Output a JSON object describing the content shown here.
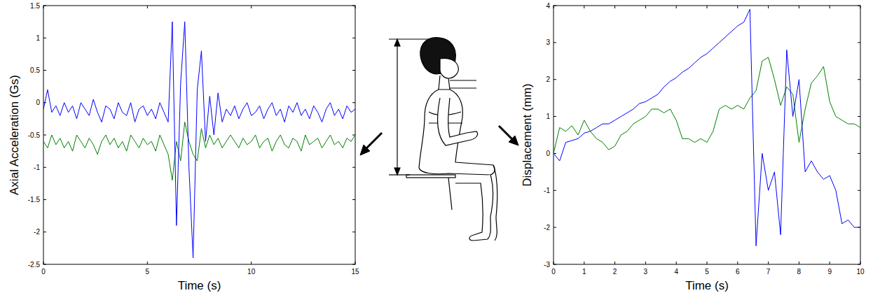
{
  "chart_data": [
    {
      "type": "line",
      "x_label": "Time (s)",
      "y_label": "Axial Acceleration (Gs)",
      "x": [
        0,
        0.2,
        0.4,
        0.6,
        0.8,
        1,
        1.2,
        1.4,
        1.6,
        1.8,
        2,
        2.2,
        2.4,
        2.6,
        2.8,
        3,
        3.2,
        3.4,
        3.6,
        3.8,
        4,
        4.2,
        4.4,
        4.6,
        4.8,
        5,
        5.2,
        5.4,
        5.6,
        5.8,
        6,
        6.2,
        6.4,
        6.6,
        6.8,
        7,
        7.2,
        7.4,
        7.6,
        7.8,
        8,
        8.2,
        8.4,
        8.6,
        8.8,
        9,
        9.2,
        9.4,
        9.6,
        9.8,
        10,
        10.2,
        10.4,
        10.6,
        10.8,
        11,
        11.2,
        11.4,
        11.6,
        11.8,
        12,
        12.2,
        12.4,
        12.6,
        12.8,
        13,
        13.2,
        13.4,
        13.6,
        13.8,
        14,
        14.2,
        14.4,
        14.6,
        14.8,
        15
      ],
      "series": [
        {
          "color": "#0000ff",
          "values": [
            -0.1,
            0.2,
            -0.15,
            -0.05,
            -0.2,
            0.0,
            -0.15,
            -0.05,
            -0.25,
            0.0,
            -0.1,
            -0.2,
            0.05,
            -0.15,
            -0.3,
            -0.05,
            -0.1,
            -0.25,
            0.0,
            -0.15,
            -0.2,
            0.0,
            -0.3,
            -0.1,
            -0.05,
            -0.2,
            -0.1,
            -0.25,
            0.0,
            -0.15,
            -0.3,
            1.25,
            -1.9,
            0.3,
            1.25,
            -1.0,
            -2.4,
            0.2,
            0.8,
            -0.6,
            0.1,
            -0.5,
            0.15,
            -0.3,
            -0.1,
            -0.2,
            -0.05,
            -0.25,
            -0.1,
            0.0,
            -0.2,
            -0.15,
            -0.05,
            -0.25,
            -0.1,
            0.0,
            -0.2,
            -0.1,
            -0.3,
            -0.05,
            -0.15,
            0.0,
            -0.2,
            -0.1,
            -0.25,
            -0.05,
            -0.15,
            -0.3,
            -0.1,
            0.0,
            -0.2,
            -0.1,
            -0.25,
            -0.05,
            -0.15,
            -0.1
          ]
        },
        {
          "color": "#008000",
          "values": [
            -0.6,
            -0.7,
            -0.5,
            -0.65,
            -0.55,
            -0.7,
            -0.6,
            -0.75,
            -0.5,
            -0.6,
            -0.7,
            -0.55,
            -0.65,
            -0.8,
            -0.6,
            -0.5,
            -0.65,
            -0.55,
            -0.7,
            -0.6,
            -0.75,
            -0.5,
            -0.6,
            -0.7,
            -0.55,
            -0.65,
            -0.6,
            -0.75,
            -0.5,
            -0.65,
            -0.8,
            -1.2,
            -0.6,
            -0.9,
            -0.3,
            -0.6,
            -0.8,
            -0.9,
            -0.4,
            -0.7,
            -0.5,
            -0.65,
            -0.55,
            -0.7,
            -0.6,
            -0.5,
            -0.6,
            -0.7,
            -0.55,
            -0.65,
            -0.6,
            -0.5,
            -0.7,
            -0.6,
            -0.55,
            -0.75,
            -0.6,
            -0.5,
            -0.65,
            -0.7,
            -0.55,
            -0.6,
            -0.75,
            -0.5,
            -0.65,
            -0.6,
            -0.55,
            -0.7,
            -0.6,
            -0.5,
            -0.65,
            -0.6,
            -0.7,
            -0.55,
            -0.6,
            -0.5
          ]
        }
      ],
      "xlim": [
        0,
        15
      ],
      "xticks": [
        0,
        5,
        10,
        15
      ],
      "ylim": [
        -2.5,
        1.5
      ],
      "yticks": [
        -2.5,
        -2,
        -1.5,
        -1,
        -0.5,
        0,
        0.5,
        1,
        1.5
      ],
      "grid": false
    },
    {
      "type": "line",
      "x_label": "Time (s)",
      "y_label": "Displacement (mm)",
      "x": [
        0,
        0.2,
        0.4,
        0.6,
        0.8,
        1,
        1.2,
        1.4,
        1.6,
        1.8,
        2,
        2.2,
        2.4,
        2.6,
        2.8,
        3,
        3.2,
        3.4,
        3.6,
        3.8,
        4,
        4.2,
        4.4,
        4.6,
        4.8,
        5,
        5.2,
        5.4,
        5.6,
        5.8,
        6,
        6.2,
        6.4,
        6.6,
        6.8,
        7,
        7.2,
        7.4,
        7.6,
        7.8,
        8,
        8.2,
        8.4,
        8.6,
        8.8,
        9,
        9.2,
        9.4,
        9.6,
        9.8,
        10
      ],
      "series": [
        {
          "color": "#0000ff",
          "values": [
            0,
            -0.2,
            0.3,
            0.35,
            0.4,
            0.55,
            0.6,
            0.7,
            0.8,
            0.8,
            0.9,
            1.0,
            1.1,
            1.2,
            1.35,
            1.4,
            1.5,
            1.6,
            1.8,
            1.95,
            2.05,
            2.2,
            2.3,
            2.45,
            2.6,
            2.7,
            2.85,
            3.0,
            3.15,
            3.3,
            3.45,
            3.55,
            3.9,
            -2.5,
            0.0,
            -1.0,
            -0.5,
            -2.2,
            2.8,
            1.0,
            2.0,
            -0.5,
            -0.2,
            -0.5,
            -0.7,
            -0.6,
            -1.0,
            -1.9,
            -1.8,
            -2.0,
            -2.0
          ]
        },
        {
          "color": "#008000",
          "values": [
            0,
            0.7,
            0.6,
            0.75,
            0.5,
            0.9,
            0.6,
            0.4,
            0.3,
            0.1,
            0.2,
            0.5,
            0.6,
            0.8,
            0.9,
            1.0,
            1.2,
            1.2,
            1.1,
            1.2,
            0.9,
            0.4,
            0.4,
            0.3,
            0.4,
            0.3,
            0.6,
            1.2,
            1.3,
            1.2,
            1.3,
            1.2,
            1.5,
            1.7,
            2.5,
            2.6,
            2.0,
            1.3,
            1.8,
            1.6,
            0.3,
            1.2,
            1.9,
            2.1,
            2.35,
            1.4,
            1.0,
            0.9,
            0.8,
            0.8,
            0.7
          ]
        }
      ],
      "xlim": [
        0,
        10
      ],
      "xticks": [
        0,
        1,
        2,
        3,
        4,
        5,
        6,
        7,
        8,
        9,
        10
      ],
      "ylim": [
        -3,
        4
      ],
      "yticks": [
        -3,
        -2,
        -1,
        0,
        1,
        2,
        3,
        4
      ],
      "grid": false
    }
  ]
}
